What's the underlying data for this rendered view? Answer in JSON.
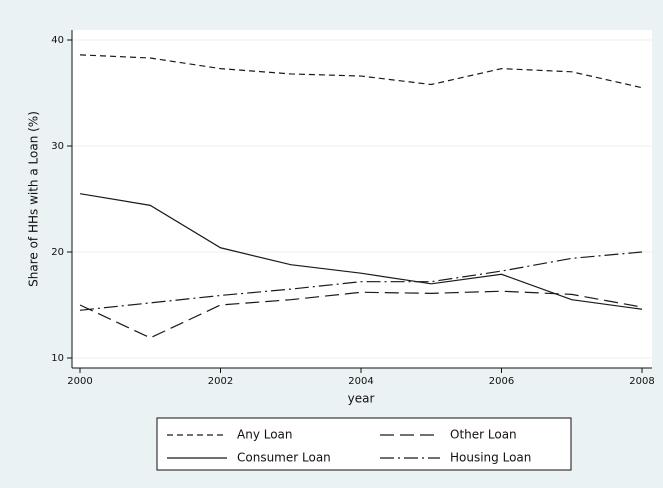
{
  "chart_data": {
    "type": "line",
    "x_label": "year",
    "y_label": "Share of HHs with a Loan (%)",
    "x": [
      2000,
      2001,
      2002,
      2003,
      2004,
      2005,
      2006,
      2007,
      2008
    ],
    "series": [
      {
        "name": "Any Loan",
        "color": "#1a1a1a",
        "dash": "6,4",
        "values": [
          38.6,
          38.3,
          37.3,
          36.8,
          36.6,
          35.8,
          37.3,
          37.0,
          35.5
        ]
      },
      {
        "name": "Other Loan",
        "color": "#1a1a1a",
        "dash": "14,6",
        "values": [
          15.0,
          11.9,
          15.0,
          15.5,
          16.2,
          16.1,
          16.3,
          16.0,
          14.8
        ]
      },
      {
        "name": "Consumer Loan",
        "color": "#1a1a1a",
        "dash": "none",
        "values": [
          25.5,
          24.4,
          20.4,
          18.8,
          18.0,
          17.0,
          17.9,
          15.5,
          14.6
        ]
      },
      {
        "name": "Housing Loan",
        "color": "#1a1a1a",
        "dash": "14,4,2,4",
        "values": [
          14.5,
          15.2,
          15.9,
          16.5,
          17.2,
          17.2,
          18.2,
          19.4,
          20.0
        ]
      }
    ],
    "xlim": [
      2000,
      2008
    ],
    "xticks": [
      2000,
      2002,
      2004,
      2006,
      2008
    ],
    "ylim": [
      10,
      40
    ],
    "yticks": [
      10,
      20,
      30,
      40
    ],
    "grid": true,
    "legend": "bottom"
  }
}
